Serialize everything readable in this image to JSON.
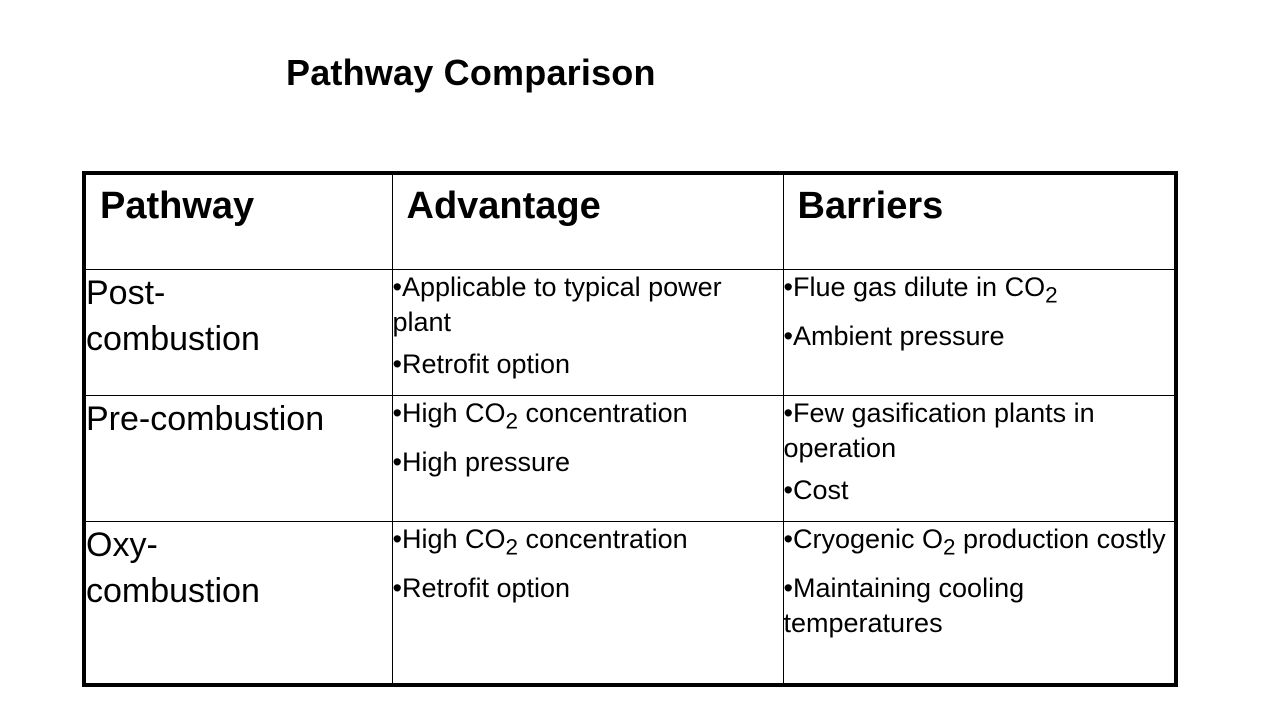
{
  "title": "Pathway Comparison",
  "headers": {
    "pathway": "Pathway",
    "advantage": "Advantage",
    "barriers": "Barriers"
  },
  "rows": [
    {
      "pathway": "Post-\ncombustion",
      "advantages": [
        {
          "text": "•Applicable to typical power plant"
        },
        {
          "text": "•Retrofit option"
        }
      ],
      "barriers": [
        {
          "pre": "•Flue gas dilute in CO",
          "sub": "2",
          "post": ""
        },
        {
          "text": "•Ambient pressure"
        }
      ]
    },
    {
      "pathway": "Pre-combustion",
      "advantages": [
        {
          "pre": "•High CO",
          "sub": "2",
          "post": " concentration"
        },
        {
          "text": "•High pressure"
        }
      ],
      "barriers": [
        {
          "text": "•Few gasification plants in operation"
        },
        {
          "text": "•Cost"
        }
      ]
    },
    {
      "pathway": "Oxy-\ncombustion",
      "advantages": [
        {
          "pre": "•High CO",
          "sub": "2",
          "post": " concentration"
        },
        {
          "text": "•Retrofit option"
        }
      ],
      "barriers": [
        {
          "pre": "•Cryogenic O",
          "sub": "2",
          "post": " production costly"
        },
        {
          "text": "•Maintaining cooling temperatures"
        }
      ]
    }
  ]
}
